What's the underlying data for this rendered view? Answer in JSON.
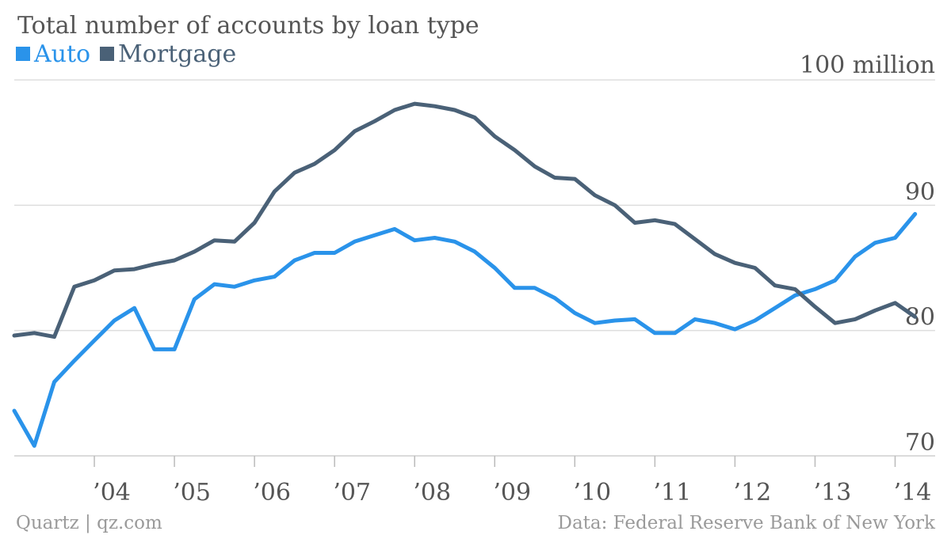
{
  "colors": {
    "auto": "#2a93ea",
    "mortgage": "#4a6177"
  },
  "footer": {
    "source_left": "Quartz | qz.com",
    "source_right": "Data: Federal Reserve Bank of New York"
  },
  "chart_data": {
    "type": "line",
    "title": "Total number of accounts by loan type",
    "unit_label": "100 million",
    "ylim": [
      70,
      100
    ],
    "yticks": [
      70,
      80,
      90
    ],
    "xlim": [
      2003.0,
      2014.5
    ],
    "x_ticks": [
      {
        "x": 2004,
        "label": "’04"
      },
      {
        "x": 2005,
        "label": "’05"
      },
      {
        "x": 2006,
        "label": "’06"
      },
      {
        "x": 2007,
        "label": "’07"
      },
      {
        "x": 2008,
        "label": "’08"
      },
      {
        "x": 2009,
        "label": "’09"
      },
      {
        "x": 2010,
        "label": "’10"
      },
      {
        "x": 2011,
        "label": "’11"
      },
      {
        "x": 2012,
        "label": "’12"
      },
      {
        "x": 2013,
        "label": "’13"
      },
      {
        "x": 2014,
        "label": "’14"
      }
    ],
    "x": [
      2003.0,
      2003.25,
      2003.5,
      2003.75,
      2004.0,
      2004.25,
      2004.5,
      2004.75,
      2005.0,
      2005.25,
      2005.5,
      2005.75,
      2006.0,
      2006.25,
      2006.5,
      2006.75,
      2007.0,
      2007.25,
      2007.5,
      2007.75,
      2008.0,
      2008.25,
      2008.5,
      2008.75,
      2009.0,
      2009.25,
      2009.5,
      2009.75,
      2010.0,
      2010.25,
      2010.5,
      2010.75,
      2011.0,
      2011.25,
      2011.5,
      2011.75,
      2012.0,
      2012.25,
      2012.5,
      2012.75,
      2013.0,
      2013.25,
      2013.5,
      2013.75,
      2014.0,
      2014.25
    ],
    "series": [
      {
        "name": "Auto",
        "color": "auto",
        "values": [
          73.6,
          70.8,
          75.9,
          77.6,
          79.2,
          80.8,
          81.8,
          78.5,
          78.5,
          82.5,
          83.7,
          83.5,
          84.0,
          84.3,
          85.6,
          86.2,
          86.2,
          87.1,
          87.6,
          88.1,
          87.2,
          87.4,
          87.1,
          86.3,
          85.0,
          83.4,
          83.4,
          82.6,
          81.4,
          80.6,
          80.8,
          80.9,
          79.8,
          79.8,
          80.9,
          80.6,
          80.1,
          80.8,
          81.8,
          82.8,
          83.3,
          84.0,
          85.9,
          87.0,
          87.4,
          89.3
        ]
      },
      {
        "name": "Mortgage",
        "color": "mortgage",
        "values": [
          79.6,
          79.8,
          79.5,
          83.5,
          84.0,
          84.8,
          84.9,
          85.3,
          85.6,
          86.3,
          87.2,
          87.1,
          88.6,
          91.1,
          92.6,
          93.3,
          94.4,
          95.9,
          96.7,
          97.6,
          98.1,
          97.9,
          97.6,
          97.0,
          95.5,
          94.4,
          93.1,
          92.2,
          92.1,
          90.8,
          90.0,
          88.6,
          88.8,
          88.5,
          87.3,
          86.1,
          85.4,
          85.0,
          83.6,
          83.3,
          81.9,
          80.6,
          80.9,
          81.6,
          82.2,
          81.1
        ]
      }
    ]
  }
}
